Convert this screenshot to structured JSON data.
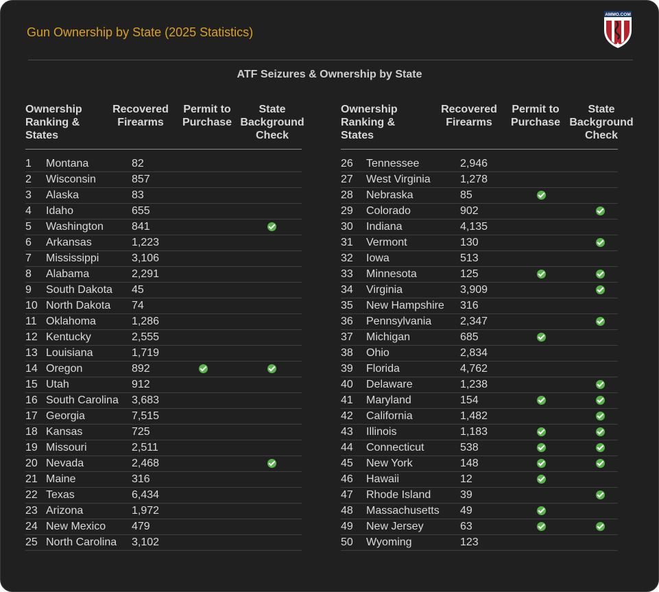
{
  "header": {
    "title": "Gun Ownership by State (2025 Statistics)",
    "logo_text": "AMMO.COM"
  },
  "chart_data": {
    "type": "table",
    "title": "ATF Seizures & Ownership by State",
    "columns": [
      "Ownership Ranking & States",
      "Recovered Firearms",
      "Permit to Purchase",
      "State Background Check"
    ],
    "rows": [
      {
        "rank": "1",
        "state": "Montana",
        "recovered": "82",
        "permit": false,
        "bg": false
      },
      {
        "rank": "2",
        "state": "Wisconsin",
        "recovered": "857",
        "permit": false,
        "bg": false
      },
      {
        "rank": "3",
        "state": "Alaska",
        "recovered": "83",
        "permit": false,
        "bg": false
      },
      {
        "rank": "4",
        "state": "Idaho",
        "recovered": "655",
        "permit": false,
        "bg": false
      },
      {
        "rank": "5",
        "state": "Washington",
        "recovered": "841",
        "permit": false,
        "bg": true
      },
      {
        "rank": "6",
        "state": "Arkansas",
        "recovered": "1,223",
        "permit": false,
        "bg": false
      },
      {
        "rank": "7",
        "state": "Mississippi",
        "recovered": "3,106",
        "permit": false,
        "bg": false
      },
      {
        "rank": "8",
        "state": "Alabama",
        "recovered": "2,291",
        "permit": false,
        "bg": false
      },
      {
        "rank": "9",
        "state": "South Dakota",
        "recovered": "45",
        "permit": false,
        "bg": false
      },
      {
        "rank": "10",
        "state": "North Dakota",
        "recovered": "74",
        "permit": false,
        "bg": false
      },
      {
        "rank": "11",
        "state": "Oklahoma",
        "recovered": "1,286",
        "permit": false,
        "bg": false
      },
      {
        "rank": "12",
        "state": "Kentucky",
        "recovered": "2,555",
        "permit": false,
        "bg": false
      },
      {
        "rank": "13",
        "state": "Louisiana",
        "recovered": "1,719",
        "permit": false,
        "bg": false
      },
      {
        "rank": "14",
        "state": "Oregon",
        "recovered": "892",
        "permit": true,
        "bg": true
      },
      {
        "rank": "15",
        "state": "Utah",
        "recovered": "912",
        "permit": false,
        "bg": false
      },
      {
        "rank": "16",
        "state": "South Carolina",
        "recovered": "3,683",
        "permit": false,
        "bg": false
      },
      {
        "rank": "17",
        "state": "Georgia",
        "recovered": "7,515",
        "permit": false,
        "bg": false
      },
      {
        "rank": "18",
        "state": "Kansas",
        "recovered": "725",
        "permit": false,
        "bg": false
      },
      {
        "rank": "19",
        "state": "Missouri",
        "recovered": "2,511",
        "permit": false,
        "bg": false
      },
      {
        "rank": "20",
        "state": "Nevada",
        "recovered": "2,468",
        "permit": false,
        "bg": true
      },
      {
        "rank": "21",
        "state": "Maine",
        "recovered": "316",
        "permit": false,
        "bg": false
      },
      {
        "rank": "22",
        "state": "Texas",
        "recovered": "6,434",
        "permit": false,
        "bg": false
      },
      {
        "rank": "23",
        "state": "Arizona",
        "recovered": "1,972",
        "permit": false,
        "bg": false
      },
      {
        "rank": "24",
        "state": "New Mexico",
        "recovered": "479",
        "permit": false,
        "bg": false
      },
      {
        "rank": "25",
        "state": "North Carolina",
        "recovered": "3,102",
        "permit": false,
        "bg": false
      },
      {
        "rank": "26",
        "state": "Tennessee",
        "recovered": "2,946",
        "permit": false,
        "bg": false
      },
      {
        "rank": "27",
        "state": "West Virginia",
        "recovered": "1,278",
        "permit": false,
        "bg": false
      },
      {
        "rank": "28",
        "state": "Nebraska",
        "recovered": "85",
        "permit": true,
        "bg": false
      },
      {
        "rank": "29",
        "state": "Colorado",
        "recovered": "902",
        "permit": false,
        "bg": true
      },
      {
        "rank": "30",
        "state": "Indiana",
        "recovered": "4,135",
        "permit": false,
        "bg": false
      },
      {
        "rank": "31",
        "state": "Vermont",
        "recovered": "130",
        "permit": false,
        "bg": true
      },
      {
        "rank": "32",
        "state": "Iowa",
        "recovered": "513",
        "permit": false,
        "bg": false
      },
      {
        "rank": "33",
        "state": "Minnesota",
        "recovered": "125",
        "permit": true,
        "bg": true
      },
      {
        "rank": "34",
        "state": "Virginia",
        "recovered": "3,909",
        "permit": false,
        "bg": true
      },
      {
        "rank": "35",
        "state": "New Hampshire",
        "recovered": "316",
        "permit": false,
        "bg": false
      },
      {
        "rank": "36",
        "state": "Pennsylvania",
        "recovered": "2,347",
        "permit": false,
        "bg": true
      },
      {
        "rank": "37",
        "state": "Michigan",
        "recovered": "685",
        "permit": true,
        "bg": false
      },
      {
        "rank": "38",
        "state": "Ohio",
        "recovered": "2,834",
        "permit": false,
        "bg": false
      },
      {
        "rank": "39",
        "state": "Florida",
        "recovered": "4,762",
        "permit": false,
        "bg": false
      },
      {
        "rank": "40",
        "state": "Delaware",
        "recovered": "1,238",
        "permit": false,
        "bg": true
      },
      {
        "rank": "41",
        "state": "Maryland",
        "recovered": "154",
        "permit": true,
        "bg": true
      },
      {
        "rank": "42",
        "state": "California",
        "recovered": "1,482",
        "permit": false,
        "bg": true
      },
      {
        "rank": "43",
        "state": "Illinois",
        "recovered": "1,183",
        "permit": true,
        "bg": true
      },
      {
        "rank": "44",
        "state": "Connecticut",
        "recovered": "538",
        "permit": true,
        "bg": true
      },
      {
        "rank": "45",
        "state": "New York",
        "recovered": "148",
        "permit": true,
        "bg": true
      },
      {
        "rank": "46",
        "state": "Hawaii",
        "recovered": "12",
        "permit": true,
        "bg": false
      },
      {
        "rank": "47",
        "state": "Rhode Island",
        "recovered": "39",
        "permit": false,
        "bg": true
      },
      {
        "rank": "48",
        "state": "Massachusetts",
        "recovered": "49",
        "permit": true,
        "bg": false
      },
      {
        "rank": "49",
        "state": "New Jersey",
        "recovered": "63",
        "permit": true,
        "bg": true
      },
      {
        "rank": "50",
        "state": "Wyoming",
        "recovered": "123",
        "permit": false,
        "bg": false
      }
    ]
  },
  "colors": {
    "background": "#202020",
    "title": "#d9a028",
    "check": "#58b44a",
    "text": "#dadada"
  },
  "icons": {
    "check": "check-circle-icon",
    "logo": "ammo-shield-logo-icon"
  }
}
